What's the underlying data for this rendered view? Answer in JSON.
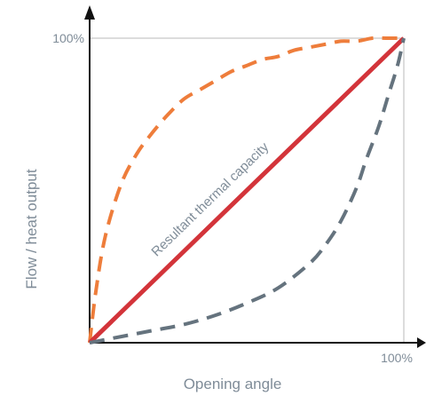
{
  "chart_data": {
    "type": "line",
    "title": "",
    "xlabel": "Opening angle",
    "ylabel": "Flow / heat output",
    "x_tick_label": "100%",
    "y_tick_label": "100%",
    "xlim": [
      0,
      100
    ],
    "ylim": [
      0,
      100
    ],
    "grid": false,
    "legend": "none",
    "annotation": "Resultant thermal capacity",
    "series": [
      {
        "name": "",
        "style": "dashed",
        "color": "#ee7d3b",
        "x": [
          0,
          2,
          5,
          10,
          15,
          20,
          25,
          30,
          35,
          40,
          45,
          50,
          55,
          60,
          65,
          70,
          75,
          80,
          85,
          90,
          95,
          100
        ],
        "y": [
          0,
          17,
          35,
          52,
          62,
          69,
          75,
          80,
          83,
          86,
          89,
          91,
          93,
          94,
          96,
          97,
          98,
          99,
          99,
          100,
          100,
          100
        ]
      },
      {
        "name": "",
        "style": "solid",
        "color": "#d3343a",
        "x": [
          0,
          100
        ],
        "y": [
          0,
          100
        ]
      },
      {
        "name": "",
        "style": "dashed",
        "color": "#65737e",
        "x": [
          0,
          10,
          20,
          30,
          40,
          50,
          60,
          70,
          75,
          80,
          85,
          88,
          92,
          95,
          98,
          100
        ],
        "y": [
          0,
          2,
          4,
          6,
          9,
          13,
          18,
          26,
          32,
          40,
          51,
          60,
          71,
          81,
          91,
          100
        ]
      }
    ]
  }
}
